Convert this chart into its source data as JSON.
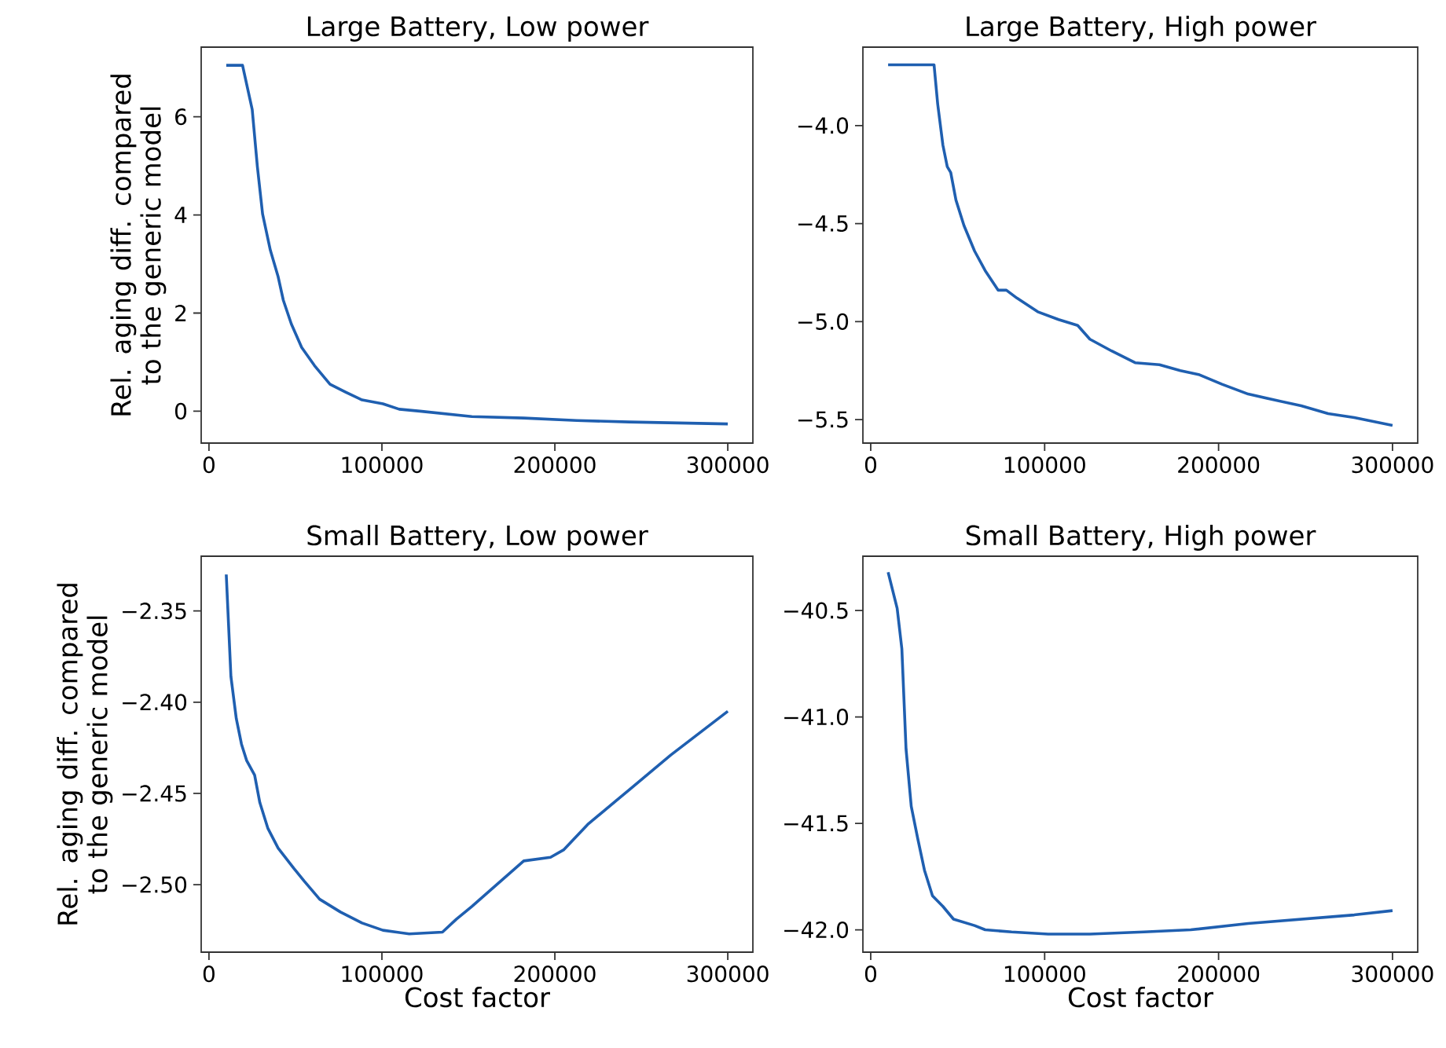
{
  "chart_data": [
    {
      "type": "line",
      "title": "Large Battery, Low power",
      "ylabel": "Rel. aging diff. compared to the generic model",
      "xlim": [
        -4500,
        314500
      ],
      "ylim": [
        -0.65,
        7.42
      ],
      "xticks": [
        0,
        100000,
        200000,
        300000
      ],
      "yticks": [
        0,
        2,
        4,
        6
      ],
      "grid": false,
      "series": [
        {
          "color": "#1f5fb0",
          "x": [
            10000,
            19400,
            25000,
            28000,
            31000,
            35500,
            40000,
            43000,
            47600,
            53600,
            61000,
            70000,
            79000,
            88500,
            100600,
            110000,
            122000,
            152000,
            182000,
            212700,
            243000,
            300000
          ],
          "values": [
            7.05,
            7.05,
            6.15,
            4.98,
            4.02,
            3.28,
            2.74,
            2.26,
            1.78,
            1.3,
            0.93,
            0.55,
            0.39,
            0.23,
            0.15,
            0.04,
            0,
            -0.11,
            -0.14,
            -0.19,
            -0.22,
            -0.26
          ]
        }
      ]
    },
    {
      "type": "line",
      "title": "Large Battery, High power",
      "xlim": [
        -4500,
        314500
      ],
      "ylim": [
        -5.62,
        -3.6
      ],
      "xticks": [
        0,
        100000,
        200000,
        300000
      ],
      "yticks": [
        {
          "value": -5.5,
          "label": "−5.5"
        },
        {
          "value": -5,
          "label": "−5.0"
        },
        {
          "value": -4.5,
          "label": "−4.5"
        },
        {
          "value": -4,
          "label": "−4.0"
        }
      ],
      "grid": false,
      "series": [
        {
          "color": "#1f5fb0",
          "x": [
            10000,
            36400,
            38500,
            41500,
            44000,
            46000,
            49000,
            53600,
            59700,
            65800,
            71800,
            73300,
            78000,
            84000,
            96000,
            108000,
            119000,
            126000,
            138500,
            152000,
            166000,
            178000,
            188500,
            202000,
            217000,
            232000,
            247500,
            263000,
            278000,
            300000
          ],
          "values": [
            -3.69,
            -3.69,
            -3.89,
            -4.1,
            -4.21,
            -4.24,
            -4.38,
            -4.51,
            -4.64,
            -4.74,
            -4.82,
            -4.84,
            -4.84,
            -4.88,
            -4.95,
            -4.99,
            -5.02,
            -5.09,
            -5.15,
            -5.21,
            -5.22,
            -5.25,
            -5.27,
            -5.32,
            -5.37,
            -5.4,
            -5.43,
            -5.47,
            -5.49,
            -5.53
          ]
        }
      ]
    },
    {
      "type": "line",
      "title": "Small Battery, Low power",
      "xlabel": "Cost factor",
      "ylabel": "Rel. aging diff. compared to the generic model",
      "xlim": [
        -4500,
        314500
      ],
      "ylim": [
        -2.537,
        -2.32
      ],
      "xticks": [
        0,
        100000,
        200000,
        300000
      ],
      "yticks": [
        {
          "value": -2.5,
          "label": "−2.50"
        },
        {
          "value": -2.45,
          "label": "−2.45"
        },
        {
          "value": -2.4,
          "label": "−2.40"
        },
        {
          "value": -2.35,
          "label": "−2.35"
        }
      ],
      "grid": false,
      "series": [
        {
          "color": "#1f5fb0",
          "x": [
            10000,
            12700,
            15800,
            18800,
            21800,
            26400,
            29400,
            34000,
            40000,
            49000,
            55000,
            64000,
            76000,
            88500,
            100600,
            115800,
            135000,
            143000,
            152000,
            164000,
            182000,
            197500,
            205000,
            219000,
            243000,
            267000,
            300000
          ],
          "values": [
            -2.33,
            -2.386,
            -2.409,
            -2.423,
            -2.432,
            -2.44,
            -2.455,
            -2.469,
            -2.48,
            -2.491,
            -2.498,
            -2.508,
            -2.515,
            -2.521,
            -2.525,
            -2.527,
            -2.526,
            -2.519,
            -2.512,
            -2.502,
            -2.487,
            -2.485,
            -2.481,
            -2.467,
            -2.448,
            -2.429,
            -2.405
          ]
        }
      ]
    },
    {
      "type": "line",
      "title": "Small Battery, High power",
      "xlabel": "Cost factor",
      "xlim": [
        -4500,
        314500
      ],
      "ylim": [
        -42.105,
        -40.245
      ],
      "xticks": [
        0,
        100000,
        200000,
        300000
      ],
      "yticks": [
        {
          "value": -42,
          "label": "−42.0"
        },
        {
          "value": -41.5,
          "label": "−41.5"
        },
        {
          "value": -41,
          "label": "−41.0"
        },
        {
          "value": -40.5,
          "label": "−40.5"
        }
      ],
      "grid": false,
      "series": [
        {
          "color": "#1f5fb0",
          "x": [
            10000,
            15200,
            17900,
            20300,
            23300,
            27000,
            30900,
            35500,
            41500,
            47600,
            59700,
            65800,
            81000,
            102000,
            126000,
            157000,
            184000,
            217000,
            247500,
            278000,
            300000
          ],
          "values": [
            -40.32,
            -40.49,
            -40.68,
            -41.15,
            -41.42,
            -41.57,
            -41.72,
            -41.84,
            -41.89,
            -41.95,
            -41.98,
            -42.0,
            -42.01,
            -42.02,
            -42.02,
            -42.01,
            -42.0,
            -41.97,
            -41.95,
            -41.93,
            -41.91
          ]
        }
      ]
    }
  ]
}
